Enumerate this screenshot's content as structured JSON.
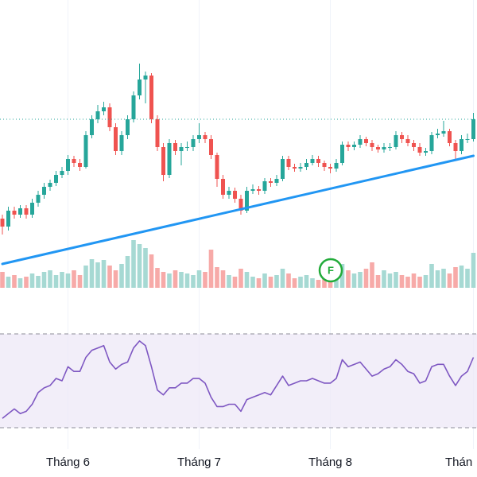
{
  "chart_data": {
    "type": "candlestick",
    "categories": [
      null,
      null,
      null,
      null,
      null,
      null,
      null,
      null,
      null,
      null,
      null,
      "Tháng 6",
      null,
      null,
      null,
      null,
      null,
      null,
      null,
      null,
      null,
      null,
      null,
      null,
      null,
      null,
      null,
      null,
      null,
      null,
      null,
      null,
      null,
      "Tháng 7",
      null,
      null,
      null,
      null,
      null,
      null,
      null,
      null,
      null,
      null,
      null,
      null,
      null,
      null,
      null,
      null,
      null,
      null,
      null,
      null,
      null,
      "Tháng 8",
      null,
      null,
      null,
      null,
      null,
      null,
      null,
      null,
      null,
      null,
      null,
      null,
      null,
      null,
      null,
      null,
      null,
      null,
      null,
      null,
      null,
      null,
      null,
      "Thán"
    ],
    "ohlc": [
      [
        325,
        330,
        305,
        315
      ],
      [
        315,
        340,
        310,
        335
      ],
      [
        335,
        340,
        325,
        330
      ],
      [
        330,
        342,
        326,
        338
      ],
      [
        338,
        342,
        325,
        330
      ],
      [
        330,
        350,
        326,
        345
      ],
      [
        345,
        360,
        340,
        355
      ],
      [
        355,
        370,
        350,
        365
      ],
      [
        365,
        374,
        360,
        370
      ],
      [
        370,
        385,
        366,
        380
      ],
      [
        380,
        390,
        376,
        385
      ],
      [
        385,
        405,
        380,
        400
      ],
      [
        400,
        404,
        390,
        395
      ],
      [
        395,
        400,
        385,
        390
      ],
      [
        390,
        435,
        388,
        430
      ],
      [
        430,
        455,
        426,
        450
      ],
      [
        450,
        468,
        445,
        460
      ],
      [
        460,
        472,
        455,
        465
      ],
      [
        465,
        470,
        435,
        440
      ],
      [
        440,
        445,
        405,
        410
      ],
      [
        410,
        435,
        405,
        430
      ],
      [
        430,
        455,
        425,
        450
      ],
      [
        450,
        485,
        446,
        480
      ],
      [
        480,
        520,
        475,
        500
      ],
      [
        500,
        510,
        470,
        505
      ],
      [
        505,
        508,
        445,
        450
      ],
      [
        450,
        455,
        410,
        415
      ],
      [
        415,
        420,
        372,
        380
      ],
      [
        380,
        425,
        376,
        420
      ],
      [
        420,
        424,
        405,
        410
      ],
      [
        410,
        420,
        392,
        415
      ],
      [
        415,
        422,
        410,
        415
      ],
      [
        415,
        430,
        410,
        425
      ],
      [
        425,
        445,
        420,
        430
      ],
      [
        430,
        434,
        420,
        425
      ],
      [
        425,
        430,
        400,
        405
      ],
      [
        405,
        408,
        365,
        375
      ],
      [
        375,
        380,
        350,
        355
      ],
      [
        355,
        365,
        350,
        360
      ],
      [
        360,
        364,
        345,
        350
      ],
      [
        350,
        355,
        330,
        335
      ],
      [
        335,
        365,
        332,
        360
      ],
      [
        360,
        368,
        356,
        362
      ],
      [
        362,
        366,
        355,
        360
      ],
      [
        360,
        376,
        356,
        372
      ],
      [
        372,
        376,
        365,
        370
      ],
      [
        370,
        380,
        366,
        375
      ],
      [
        375,
        404,
        372,
        400
      ],
      [
        400,
        404,
        386,
        390
      ],
      [
        390,
        394,
        384,
        388
      ],
      [
        388,
        395,
        384,
        390
      ],
      [
        390,
        400,
        386,
        395
      ],
      [
        395,
        405,
        392,
        400
      ],
      [
        400,
        404,
        390,
        395
      ],
      [
        395,
        398,
        385,
        390
      ],
      [
        390,
        394,
        382,
        388
      ],
      [
        388,
        400,
        384,
        395
      ],
      [
        395,
        422,
        392,
        418
      ],
      [
        418,
        422,
        410,
        415
      ],
      [
        415,
        422,
        411,
        418
      ],
      [
        418,
        430,
        414,
        425
      ],
      [
        425,
        428,
        416,
        420
      ],
      [
        420,
        424,
        410,
        415
      ],
      [
        415,
        418,
        408,
        412
      ],
      [
        412,
        420,
        408,
        415
      ],
      [
        415,
        420,
        410,
        415
      ],
      [
        415,
        435,
        412,
        430
      ],
      [
        430,
        434,
        420,
        425
      ],
      [
        425,
        430,
        416,
        420
      ],
      [
        420,
        424,
        410,
        415
      ],
      [
        415,
        420,
        404,
        408
      ],
      [
        408,
        414,
        404,
        410
      ],
      [
        410,
        434,
        406,
        430
      ],
      [
        430,
        438,
        426,
        432
      ],
      [
        432,
        448,
        428,
        435
      ],
      [
        435,
        438,
        416,
        420
      ],
      [
        420,
        424,
        400,
        410
      ],
      [
        410,
        430,
        406,
        425
      ],
      [
        425,
        432,
        420,
        425
      ],
      [
        425,
        458,
        422,
        450
      ]
    ],
    "volume": [
      20,
      14,
      16,
      12,
      14,
      18,
      15,
      20,
      22,
      16,
      20,
      18,
      22,
      16,
      28,
      36,
      32,
      35,
      28,
      22,
      30,
      40,
      60,
      55,
      50,
      42,
      25,
      20,
      18,
      22,
      20,
      18,
      16,
      22,
      20,
      48,
      26,
      22,
      16,
      14,
      24,
      20,
      14,
      12,
      18,
      14,
      16,
      24,
      18,
      12,
      14,
      16,
      12,
      10,
      14,
      12,
      18,
      30,
      22,
      18,
      20,
      24,
      32,
      16,
      22,
      18,
      20,
      16,
      14,
      18,
      14,
      16,
      30,
      22,
      24,
      18,
      26,
      28,
      24,
      44
    ],
    "rsi": [
      34,
      36,
      38,
      36,
      37,
      40,
      45,
      47,
      48,
      51,
      50,
      56,
      54,
      54,
      60,
      63,
      64,
      65,
      58,
      55,
      57,
      58,
      64,
      67,
      65,
      56,
      46,
      44,
      47,
      47,
      49,
      49,
      51,
      51,
      49,
      43,
      39,
      39,
      40,
      40,
      37,
      42,
      43,
      44,
      45,
      44,
      48,
      52,
      48,
      49,
      50,
      50,
      51,
      50,
      49,
      49,
      51,
      59,
      56,
      57,
      58,
      55,
      52,
      53,
      55,
      56,
      59,
      57,
      54,
      53,
      49,
      50,
      56,
      57,
      57,
      52,
      48,
      52,
      54,
      60
    ],
    "ylim": [
      0,
      600
    ],
    "volume_ylim": [
      0,
      100
    ],
    "rsi_ylim": [
      30,
      70
    ],
    "rsi_levels": [
      70,
      30
    ],
    "trendline": [
      268,
      404
    ],
    "price_line": 450,
    "up_color": "#26a69a",
    "down_color": "#ef5350",
    "trendline_color": "#2196f3",
    "rsi_color": "#7e57c2",
    "events": [
      {
        "label": "F"
      }
    ]
  }
}
